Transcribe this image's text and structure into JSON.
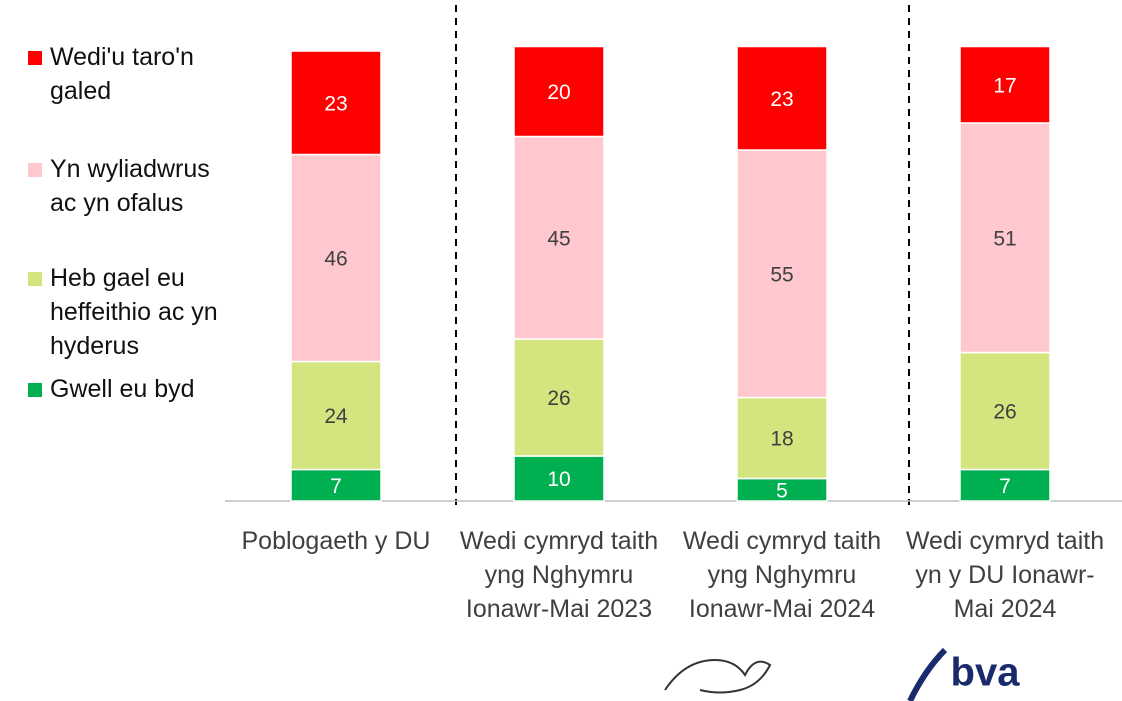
{
  "chart_data": {
    "type": "stacked_bar",
    "categories": [
      "Poblogaeth y DU",
      "Wedi cymryd taith yng Nghymru Ionawr-Mai 2023",
      "Wedi cymryd taith yng Nghymru Ionawr-Mai 2024",
      "Wedi cymryd taith yn y DU Ionawr-Mai 2024"
    ],
    "series": [
      {
        "name": "Wedi'u taro'n galed",
        "color": "#ff0000",
        "values": [
          23,
          20,
          23,
          17
        ]
      },
      {
        "name": "Yn wyliadwrus ac yn ofalus",
        "color": "#ffc7ce",
        "values": [
          46,
          45,
          55,
          51
        ]
      },
      {
        "name": "Heb gael eu heffeithio ac yn hyderus",
        "color": "#d4e57f",
        "values": [
          24,
          26,
          18,
          26
        ]
      },
      {
        "name": "Gwell eu byd",
        "color": "#00b050",
        "values": [
          7,
          10,
          5,
          7
        ]
      }
    ],
    "legend": "left",
    "logo_text": "bva"
  }
}
